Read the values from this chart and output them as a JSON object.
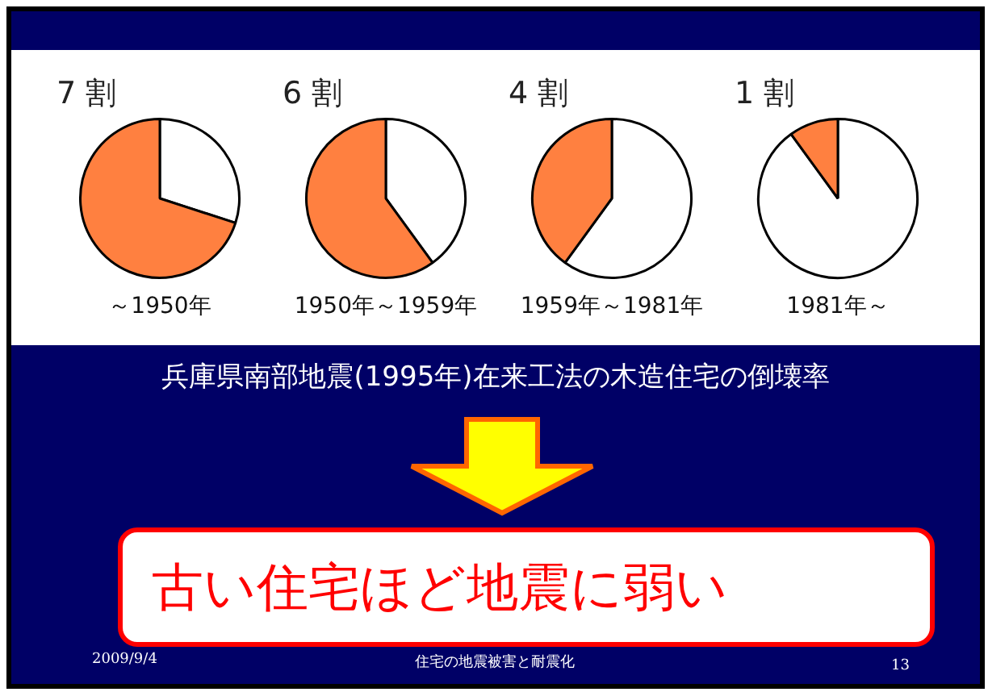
{
  "chart_data": [
    {
      "type": "pie",
      "title": "7 割",
      "xlabel": "～1950年",
      "categories": [
        null,
        null
      ],
      "values": [
        30,
        70
      ],
      "colors": [
        "#ffffff",
        "#ff8040"
      ]
    },
    {
      "type": "pie",
      "title": "6 割",
      "xlabel": "1950年～1959年",
      "categories": [
        null,
        null
      ],
      "values": [
        40,
        60
      ],
      "colors": [
        "#ffffff",
        "#ff8040"
      ]
    },
    {
      "type": "pie",
      "title": "4 割",
      "xlabel": "1959年～1981年",
      "categories": [
        null,
        null
      ],
      "values": [
        60,
        40
      ],
      "colors": [
        "#ffffff",
        "#ff8040"
      ]
    },
    {
      "type": "pie",
      "title": "1 割",
      "xlabel": "1981年～",
      "categories": [
        null,
        null
      ],
      "values": [
        90,
        10
      ],
      "colors": [
        "#ffffff",
        "#ff8040"
      ]
    },
    {
      "type": "other",
      "title": "兵庫県南部地震(1995年)在来工法の木造住宅の倒壊率",
      "annotations": [
        "古い住宅ほど地震に弱い",
        "2009/9/4",
        "住宅の地震被害と耐震化",
        "13"
      ]
    }
  ]
}
